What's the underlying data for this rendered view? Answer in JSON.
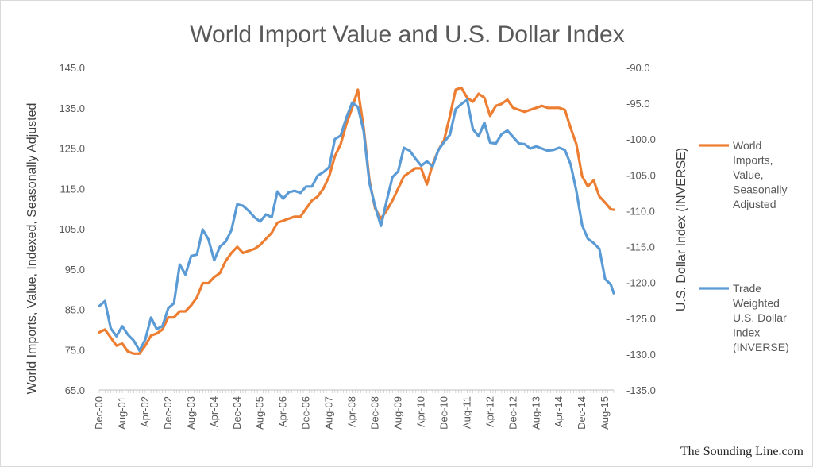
{
  "chart_data": {
    "type": "line",
    "title": "World Import Value and U.S. Dollar Index",
    "y_left_label": "World Imports, Value, Indexed, Seasonally Adjusted",
    "y_right_label": "U.S. Dollar Index (INVERSE)",
    "y_left_range": [
      65.0,
      145.0
    ],
    "y_right_range": [
      -135.0,
      -90.0
    ],
    "y_left_ticks": [
      "145.0",
      "135.0",
      "125.0",
      "115.0",
      "105.0",
      "95.0",
      "85.0",
      "75.0",
      "65.0"
    ],
    "y_right_ticks": [
      "-90.0",
      "-95.0",
      "-100.0",
      "-105.0",
      "-110.0",
      "-115.0",
      "-120.0",
      "-125.0",
      "-130.0",
      "-135.0"
    ],
    "x_tick_labels": [
      "Dec-00",
      "Aug-01",
      "Apr-02",
      "Dec-02",
      "Aug-03",
      "Apr-04",
      "Dec-04",
      "Aug-05",
      "Apr-06",
      "Dec-06",
      "Aug-07",
      "Apr-08",
      "Dec-08",
      "Aug-09",
      "Apr-10",
      "Dec-10",
      "Aug-11",
      "Apr-12",
      "Dec-12",
      "Aug-13",
      "Apr-14",
      "Dec-14",
      "Aug-15"
    ],
    "x_range": [
      "2000-12",
      "2015-11"
    ],
    "gridlines": false,
    "legend_position": "right",
    "series": [
      {
        "name": "World Imports, Value, Seasonally Adjusted",
        "axis": "left",
        "color": "#ED7D31",
        "points": [
          [
            "2000-12",
            79.3
          ],
          [
            "2001-02",
            80.0
          ],
          [
            "2001-04",
            78.0
          ],
          [
            "2001-06",
            76.0
          ],
          [
            "2001-08",
            76.5
          ],
          [
            "2001-10",
            74.5
          ],
          [
            "2001-12",
            74.0
          ],
          [
            "2002-02",
            74.0
          ],
          [
            "2002-04",
            76.0
          ],
          [
            "2002-06",
            78.5
          ],
          [
            "2002-08",
            79.0
          ],
          [
            "2002-10",
            80.0
          ],
          [
            "2002-12",
            83.0
          ],
          [
            "2003-02",
            83.0
          ],
          [
            "2003-04",
            84.5
          ],
          [
            "2003-06",
            84.5
          ],
          [
            "2003-08",
            86.0
          ],
          [
            "2003-10",
            88.0
          ],
          [
            "2003-12",
            91.5
          ],
          [
            "2004-02",
            91.5
          ],
          [
            "2004-04",
            93.0
          ],
          [
            "2004-06",
            94.0
          ],
          [
            "2004-08",
            97.0
          ],
          [
            "2004-10",
            99.0
          ],
          [
            "2004-12",
            100.5
          ],
          [
            "2005-02",
            99.0
          ],
          [
            "2005-04",
            99.5
          ],
          [
            "2005-06",
            100.0
          ],
          [
            "2005-08",
            101.0
          ],
          [
            "2005-10",
            102.5
          ],
          [
            "2005-12",
            104.0
          ],
          [
            "2006-02",
            106.5
          ],
          [
            "2006-04",
            107.0
          ],
          [
            "2006-06",
            107.5
          ],
          [
            "2006-08",
            108.0
          ],
          [
            "2006-10",
            108.0
          ],
          [
            "2006-12",
            110.0
          ],
          [
            "2007-02",
            112.0
          ],
          [
            "2007-04",
            113.0
          ],
          [
            "2007-06",
            115.0
          ],
          [
            "2007-08",
            118.0
          ],
          [
            "2007-10",
            123.0
          ],
          [
            "2007-12",
            126.0
          ],
          [
            "2008-02",
            131.0
          ],
          [
            "2008-04",
            135.0
          ],
          [
            "2008-06",
            139.5
          ],
          [
            "2008-08",
            130.0
          ],
          [
            "2008-10",
            117.0
          ],
          [
            "2008-12",
            110.0
          ],
          [
            "2009-02",
            107.5
          ],
          [
            "2009-04",
            109.5
          ],
          [
            "2009-06",
            112.0
          ],
          [
            "2009-08",
            115.0
          ],
          [
            "2009-10",
            118.0
          ],
          [
            "2009-12",
            119.0
          ],
          [
            "2010-02",
            120.0
          ],
          [
            "2010-04",
            120.0
          ],
          [
            "2010-06",
            116.0
          ],
          [
            "2010-08",
            121.0
          ],
          [
            "2010-10",
            124.5
          ],
          [
            "2010-12",
            127.0
          ],
          [
            "2011-02",
            133.0
          ],
          [
            "2011-04",
            139.5
          ],
          [
            "2011-06",
            140.0
          ],
          [
            "2011-08",
            137.5
          ],
          [
            "2011-10",
            136.5
          ],
          [
            "2011-12",
            138.5
          ],
          [
            "2012-02",
            137.5
          ],
          [
            "2012-04",
            133.0
          ],
          [
            "2012-06",
            135.5
          ],
          [
            "2012-08",
            136.0
          ],
          [
            "2012-10",
            137.0
          ],
          [
            "2012-12",
            135.0
          ],
          [
            "2013-02",
            134.5
          ],
          [
            "2013-04",
            134.0
          ],
          [
            "2013-06",
            134.5
          ],
          [
            "2013-08",
            135.0
          ],
          [
            "2013-10",
            135.5
          ],
          [
            "2013-12",
            135.0
          ],
          [
            "2014-02",
            135.0
          ],
          [
            "2014-04",
            135.0
          ],
          [
            "2014-06",
            134.5
          ],
          [
            "2014-08",
            130.0
          ],
          [
            "2014-10",
            126.0
          ],
          [
            "2014-12",
            118.0
          ],
          [
            "2015-02",
            115.5
          ],
          [
            "2015-04",
            117.0
          ],
          [
            "2015-06",
            113.0
          ],
          [
            "2015-08",
            111.5
          ],
          [
            "2015-10",
            109.8
          ],
          [
            "2015-11",
            109.7
          ]
        ]
      },
      {
        "name": "Trade Weighted U.S. Dollar Index (INVERSE)",
        "axis": "right",
        "color": "#5B9BD5",
        "points": [
          [
            "2000-12",
            -123.3
          ],
          [
            "2001-02",
            -122.6
          ],
          [
            "2001-04",
            -126.4
          ],
          [
            "2001-06",
            -127.5
          ],
          [
            "2001-08",
            -126.1
          ],
          [
            "2001-10",
            -127.3
          ],
          [
            "2001-12",
            -128.1
          ],
          [
            "2002-02",
            -129.5
          ],
          [
            "2002-04",
            -128.0
          ],
          [
            "2002-06",
            -124.9
          ],
          [
            "2002-08",
            -126.5
          ],
          [
            "2002-10",
            -126.1
          ],
          [
            "2002-12",
            -123.6
          ],
          [
            "2003-02",
            -122.9
          ],
          [
            "2003-04",
            -117.5
          ],
          [
            "2003-06",
            -118.9
          ],
          [
            "2003-08",
            -116.3
          ],
          [
            "2003-10",
            -116.1
          ],
          [
            "2003-12",
            -112.6
          ],
          [
            "2004-02",
            -114.0
          ],
          [
            "2004-04",
            -116.9
          ],
          [
            "2004-06",
            -115.0
          ],
          [
            "2004-08",
            -114.3
          ],
          [
            "2004-10",
            -112.7
          ],
          [
            "2004-12",
            -109.1
          ],
          [
            "2005-02",
            -109.3
          ],
          [
            "2005-04",
            -110.0
          ],
          [
            "2005-06",
            -110.9
          ],
          [
            "2005-08",
            -111.5
          ],
          [
            "2005-10",
            -110.5
          ],
          [
            "2005-12",
            -110.9
          ],
          [
            "2006-02",
            -107.3
          ],
          [
            "2006-04",
            -108.3
          ],
          [
            "2006-06",
            -107.4
          ],
          [
            "2006-08",
            -107.2
          ],
          [
            "2006-10",
            -107.5
          ],
          [
            "2006-12",
            -106.6
          ],
          [
            "2007-02",
            -106.6
          ],
          [
            "2007-04",
            -105.1
          ],
          [
            "2007-06",
            -104.6
          ],
          [
            "2007-08",
            -103.9
          ],
          [
            "2007-10",
            -100.0
          ],
          [
            "2007-12",
            -99.5
          ],
          [
            "2008-02",
            -97.0
          ],
          [
            "2008-04",
            -94.9
          ],
          [
            "2008-06",
            -95.5
          ],
          [
            "2008-08",
            -98.9
          ],
          [
            "2008-10",
            -106.1
          ],
          [
            "2008-12",
            -109.4
          ],
          [
            "2009-02",
            -112.1
          ],
          [
            "2009-04",
            -108.6
          ],
          [
            "2009-06",
            -105.3
          ],
          [
            "2009-08",
            -104.5
          ],
          [
            "2009-10",
            -101.2
          ],
          [
            "2009-12",
            -101.6
          ],
          [
            "2010-02",
            -102.7
          ],
          [
            "2010-04",
            -103.7
          ],
          [
            "2010-06",
            -103.1
          ],
          [
            "2010-08",
            -103.8
          ],
          [
            "2010-10",
            -101.5
          ],
          [
            "2010-12",
            -100.4
          ],
          [
            "2011-02",
            -99.4
          ],
          [
            "2011-04",
            -95.8
          ],
          [
            "2011-06",
            -95.1
          ],
          [
            "2011-08",
            -94.5
          ],
          [
            "2011-10",
            -98.6
          ],
          [
            "2011-12",
            -99.6
          ],
          [
            "2012-02",
            -97.7
          ],
          [
            "2012-04",
            -100.5
          ],
          [
            "2012-06",
            -100.6
          ],
          [
            "2012-08",
            -99.3
          ],
          [
            "2012-10",
            -98.8
          ],
          [
            "2012-12",
            -99.7
          ],
          [
            "2013-02",
            -100.6
          ],
          [
            "2013-04",
            -100.7
          ],
          [
            "2013-06",
            -101.3
          ],
          [
            "2013-08",
            -101.0
          ],
          [
            "2013-10",
            -101.3
          ],
          [
            "2013-12",
            -101.6
          ],
          [
            "2014-02",
            -101.5
          ],
          [
            "2014-04",
            -101.2
          ],
          [
            "2014-06",
            -101.5
          ],
          [
            "2014-08",
            -103.5
          ],
          [
            "2014-10",
            -107.2
          ],
          [
            "2014-12",
            -112.0
          ],
          [
            "2015-02",
            -113.9
          ],
          [
            "2015-04",
            -114.5
          ],
          [
            "2015-06",
            -115.3
          ],
          [
            "2015-08",
            -119.5
          ],
          [
            "2015-10",
            -120.3
          ],
          [
            "2015-11",
            -121.5
          ]
        ]
      }
    ]
  },
  "credit": "The Sounding Line.com"
}
